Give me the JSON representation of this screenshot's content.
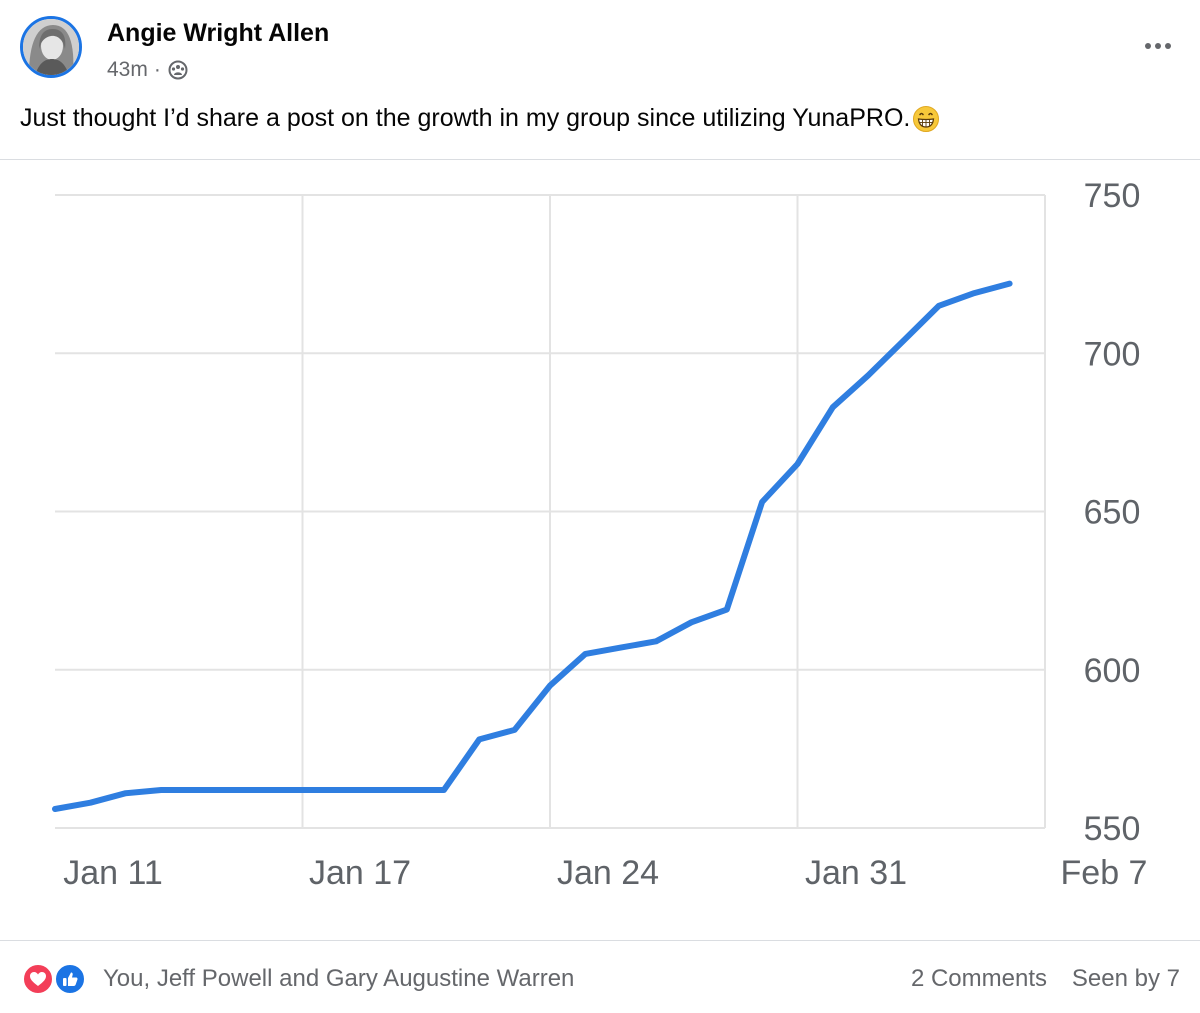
{
  "post": {
    "author": "Angie Wright Allen",
    "time": "43m",
    "separator": "·",
    "audience_icon": "group-audience-icon",
    "text": "Just thought I’d share a post on the growth in my group since utilizing YunaPRO.",
    "emoji": "grinning-face-icon"
  },
  "footer": {
    "reactions": [
      "love-icon",
      "like-icon"
    ],
    "reactors": "You, Jeff Powell and Gary Augustine Warren",
    "comments": "2 Comments",
    "seen": "Seen by 7"
  },
  "colors": {
    "accent": "#1b74e4",
    "love": "#f33e58",
    "line": "#2f7ee0",
    "grid": "#e3e3e3",
    "secondary_text": "#65676b"
  },
  "chart_data": {
    "type": "line",
    "title": "",
    "xlabel": "",
    "ylabel": "",
    "x_ticks": [
      "Jan 11",
      "Jan 17",
      "Jan 24",
      "Jan 31",
      "Feb 7"
    ],
    "y_ticks": [
      750,
      700,
      650,
      600,
      550
    ],
    "ylim": [
      550,
      750
    ],
    "xlim": [
      "2023-01-10",
      "2023-02-07"
    ],
    "y_axis_side": "right",
    "grid": true,
    "series": [
      {
        "values": [
          {
            "x": "2023-01-10",
            "y": 556
          },
          {
            "x": "2023-01-11",
            "y": 558
          },
          {
            "x": "2023-01-12",
            "y": 561
          },
          {
            "x": "2023-01-13",
            "y": 562
          },
          {
            "x": "2023-01-14",
            "y": 562
          },
          {
            "x": "2023-01-15",
            "y": 562
          },
          {
            "x": "2023-01-16",
            "y": 562
          },
          {
            "x": "2023-01-17",
            "y": 562
          },
          {
            "x": "2023-01-18",
            "y": 562
          },
          {
            "x": "2023-01-19",
            "y": 562
          },
          {
            "x": "2023-01-20",
            "y": 562
          },
          {
            "x": "2023-01-21",
            "y": 562
          },
          {
            "x": "2023-01-22",
            "y": 578
          },
          {
            "x": "2023-01-23",
            "y": 581
          },
          {
            "x": "2023-01-24",
            "y": 595
          },
          {
            "x": "2023-01-25",
            "y": 605
          },
          {
            "x": "2023-01-26",
            "y": 607
          },
          {
            "x": "2023-01-27",
            "y": 609
          },
          {
            "x": "2023-01-28",
            "y": 615
          },
          {
            "x": "2023-01-29",
            "y": 619
          },
          {
            "x": "2023-01-30",
            "y": 653
          },
          {
            "x": "2023-01-31",
            "y": 665
          },
          {
            "x": "2023-02-01",
            "y": 683
          },
          {
            "x": "2023-02-02",
            "y": 693
          },
          {
            "x": "2023-02-03",
            "y": 704
          },
          {
            "x": "2023-02-04",
            "y": 715
          },
          {
            "x": "2023-02-05",
            "y": 719
          },
          {
            "x": "2023-02-06",
            "y": 722
          }
        ]
      }
    ]
  }
}
